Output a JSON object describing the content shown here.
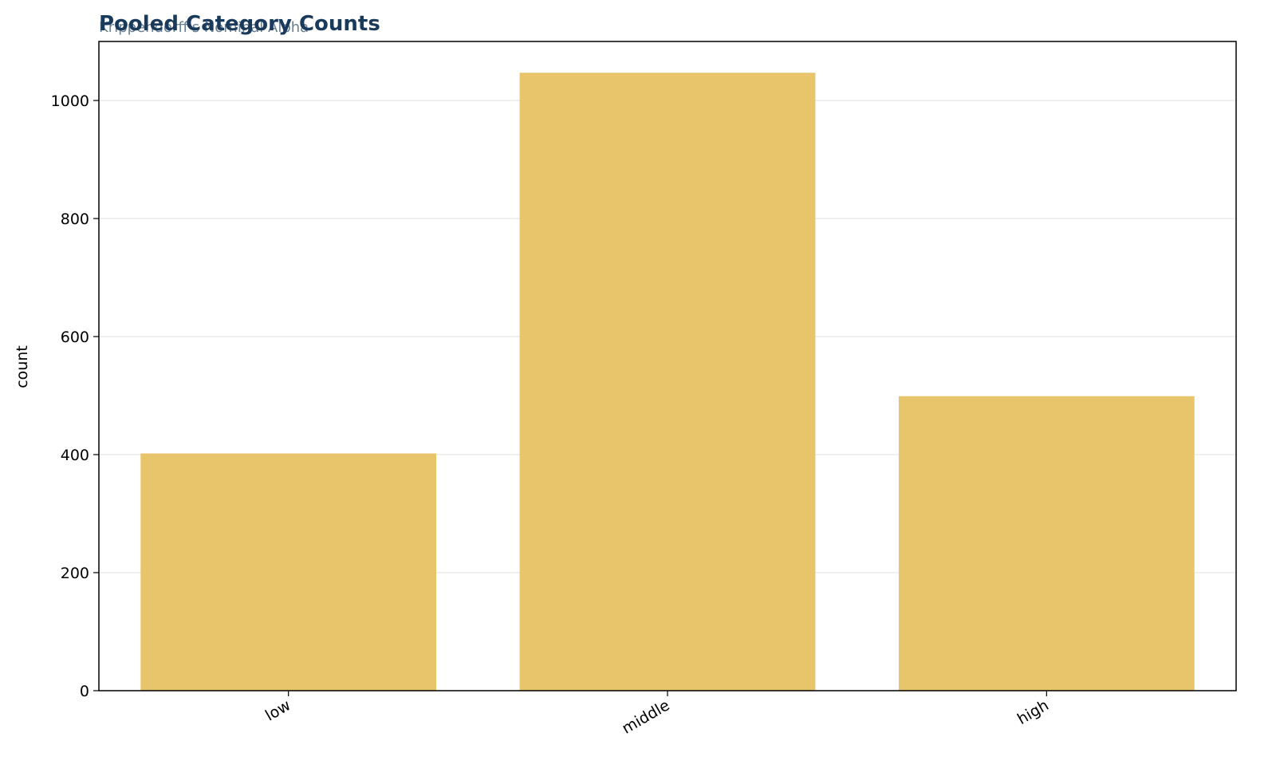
{
  "chart_data": {
    "type": "bar",
    "title": "Pooled Category Counts",
    "subtitle": "Krippendorff's Nominal Alpha",
    "y_label": "count",
    "categories": [
      "low",
      "middle",
      "high"
    ],
    "values": [
      402,
      1047,
      499
    ],
    "color": "#e8c56b",
    "ylim": [
      0,
      1100
    ],
    "yticks": [
      0,
      200,
      400,
      600,
      800,
      1000
    ],
    "grid": true
  }
}
